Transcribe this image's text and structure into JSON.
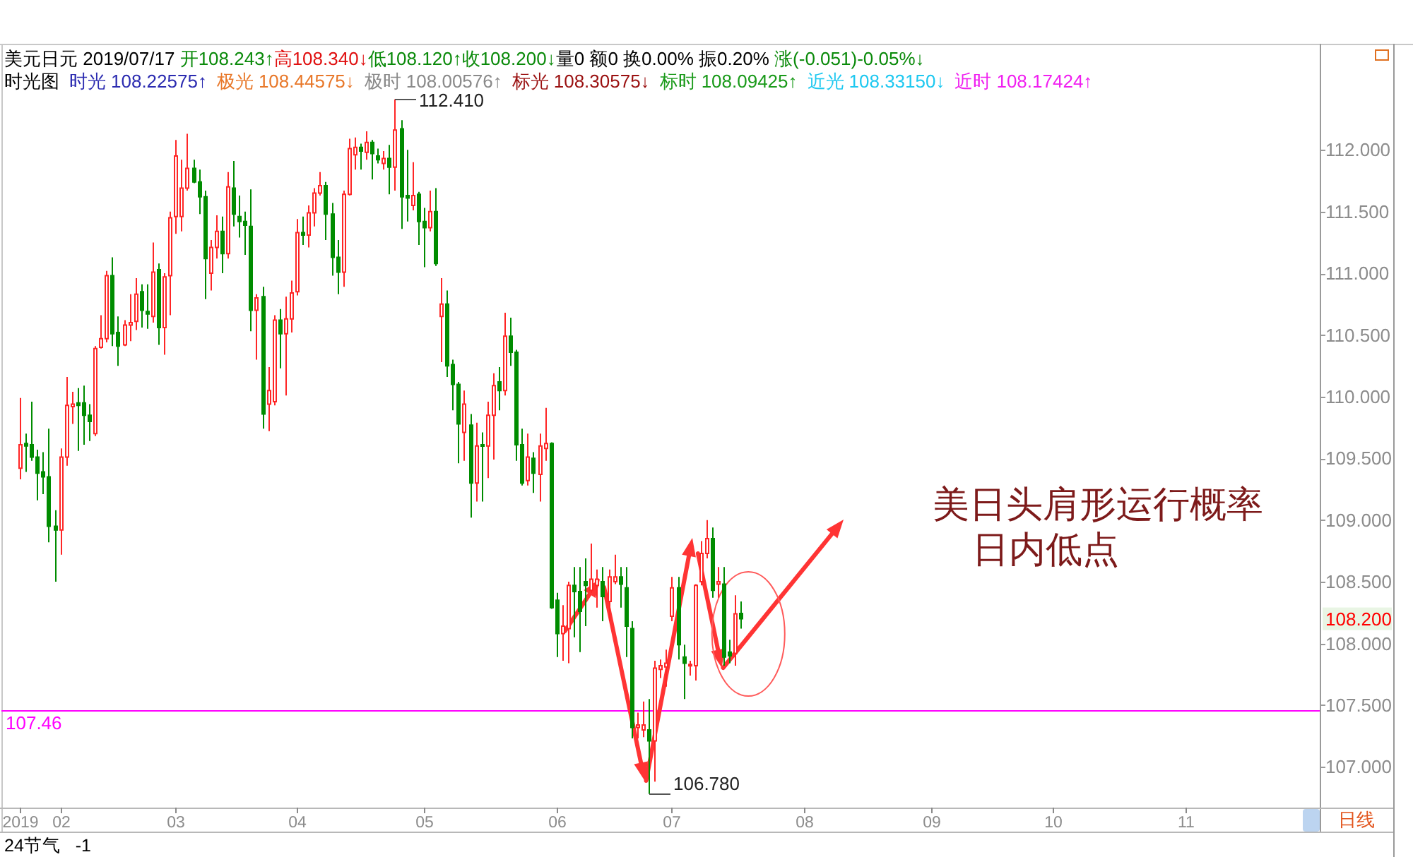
{
  "chart_data": {
    "type": "candlestick",
    "title": "美元日元 2019/07/17 开108.243↑高108.340↓低108.120↑收108.200↓量0 额0 换0.00% 振0.20% 涨(-0.051)-0.05%↓",
    "subtitle": "时光图 时光 108.22575↑ 极光 108.44575↓ 极时 108.00576↑ 标光 108.30575↓ 标时 108.09425↑ 近光 108.33150↓ 近时 108.17424↑",
    "categories": [
      "2019",
      null,
      null,
      null,
      null,
      null,
      null,
      "02",
      null,
      null,
      null,
      null,
      null,
      null,
      null,
      null,
      null,
      null,
      null,
      null,
      null,
      null,
      null,
      null,
      null,
      null,
      null,
      "03",
      null,
      null,
      null,
      null,
      null,
      null,
      null,
      null,
      null,
      null,
      null,
      null,
      null,
      null,
      null,
      null,
      null,
      null,
      null,
      null,
      "04",
      null,
      null,
      null,
      null,
      null,
      null,
      null,
      null,
      null,
      null,
      null,
      null,
      null,
      null,
      null,
      null,
      null,
      null,
      null,
      null,
      null,
      "05",
      null,
      null,
      null,
      null,
      null,
      null,
      null,
      null,
      null,
      null,
      null,
      null,
      null,
      null,
      null,
      null,
      null,
      null,
      null,
      null,
      null,
      null,
      "06",
      null,
      null,
      null,
      null,
      null,
      null,
      null,
      null,
      null,
      null,
      null,
      null,
      null,
      null,
      null,
      null,
      null,
      null,
      null,
      "07",
      null,
      null,
      null,
      null,
      null,
      null,
      null,
      null,
      null,
      null,
      null,
      null,
      null,
      null,
      null,
      null,
      null,
      null,
      null,
      null,
      null,
      null,
      "08",
      null,
      null,
      null,
      null,
      null,
      null,
      null,
      null,
      null,
      null,
      null,
      null,
      null,
      null,
      null,
      null,
      null,
      null,
      null,
      null,
      null,
      "09",
      null,
      null,
      null,
      null,
      null,
      null,
      null,
      null,
      null,
      null,
      null,
      null,
      null,
      null,
      null,
      null,
      null,
      null,
      null,
      null,
      "10",
      null,
      null,
      null,
      null,
      null,
      null,
      null,
      null,
      null,
      null,
      null,
      null,
      null,
      null,
      null,
      null,
      null,
      null,
      null,
      null,
      null,
      null,
      "11",
      null,
      null,
      null,
      null,
      null,
      null,
      null,
      null,
      null,
      null,
      null,
      null,
      null,
      null,
      null,
      null,
      null,
      null,
      null,
      null,
      null,
      null,
      null
    ],
    "ohlc": [
      [
        109.42,
        109.99,
        109.33,
        109.61
      ],
      [
        109.62,
        109.7,
        109.39,
        109.6
      ],
      [
        109.61,
        109.96,
        109.48,
        109.51
      ],
      [
        109.51,
        109.57,
        109.16,
        109.38
      ],
      [
        109.39,
        109.55,
        109.21,
        109.35
      ],
      [
        109.35,
        109.74,
        108.82,
        108.95
      ],
      [
        108.95,
        109.08,
        108.5,
        108.92
      ],
      [
        108.92,
        109.58,
        108.72,
        109.51
      ],
      [
        109.51,
        110.16,
        109.44,
        109.93
      ],
      [
        109.92,
        110.04,
        109.78,
        109.94
      ],
      [
        109.95,
        110.07,
        109.56,
        109.93
      ],
      [
        109.95,
        110.09,
        109.61,
        109.85
      ],
      [
        109.85,
        109.94,
        109.64,
        109.8
      ],
      [
        109.7,
        110.41,
        109.68,
        110.39
      ],
      [
        110.4,
        110.66,
        110.39,
        110.47
      ],
      [
        110.47,
        111.02,
        110.44,
        110.98
      ],
      [
        110.98,
        111.13,
        110.41,
        110.51
      ],
      [
        110.52,
        110.65,
        110.25,
        110.41
      ],
      [
        110.42,
        110.62,
        110.41,
        110.58
      ],
      [
        110.58,
        110.83,
        110.45,
        110.6
      ],
      [
        110.61,
        110.96,
        110.54,
        110.83
      ],
      [
        110.85,
        110.91,
        110.56,
        110.7
      ],
      [
        110.69,
        110.91,
        110.55,
        110.67
      ],
      [
        110.65,
        111.25,
        110.6,
        111.01
      ],
      [
        111.03,
        111.08,
        110.42,
        110.56
      ],
      [
        110.56,
        111.0,
        110.34,
        110.97
      ],
      [
        110.98,
        111.5,
        110.66,
        111.45
      ],
      [
        111.46,
        112.08,
        111.32,
        111.95
      ],
      [
        111.46,
        111.92,
        111.34,
        111.69
      ],
      [
        111.69,
        112.13,
        111.67,
        111.85
      ],
      [
        111.85,
        111.92,
        111.73,
        111.74
      ],
      [
        111.74,
        111.84,
        111.48,
        111.62
      ],
      [
        111.62,
        111.67,
        110.79,
        111.12
      ],
      [
        111.0,
        111.27,
        110.86,
        111.21
      ],
      [
        111.21,
        111.47,
        111.12,
        111.34
      ],
      [
        111.34,
        111.46,
        111.0,
        111.16
      ],
      [
        111.16,
        111.82,
        111.12,
        111.7
      ],
      [
        111.69,
        111.91,
        111.38,
        111.48
      ],
      [
        111.46,
        111.63,
        111.29,
        111.42
      ],
      [
        111.42,
        111.5,
        111.15,
        111.39
      ],
      [
        111.38,
        111.68,
        110.53,
        110.7
      ],
      [
        110.7,
        110.83,
        110.3,
        110.8
      ],
      [
        110.81,
        110.89,
        109.74,
        109.86
      ],
      [
        109.94,
        110.24,
        109.72,
        110.05
      ],
      [
        109.96,
        110.66,
        109.93,
        110.62
      ],
      [
        110.62,
        110.71,
        110.23,
        110.51
      ],
      [
        110.51,
        110.81,
        110.01,
        110.63
      ],
      [
        110.63,
        110.94,
        110.52,
        110.84
      ],
      [
        110.85,
        111.44,
        110.82,
        111.33
      ],
      [
        111.33,
        111.46,
        111.23,
        111.31
      ],
      [
        111.31,
        111.55,
        111.21,
        111.49
      ],
      [
        111.49,
        111.69,
        111.38,
        111.65
      ],
      [
        111.65,
        111.82,
        111.63,
        111.71
      ],
      [
        111.71,
        111.74,
        111.27,
        111.48
      ],
      [
        111.48,
        111.57,
        110.98,
        111.13
      ],
      [
        111.13,
        111.27,
        110.83,
        111.01
      ],
      [
        111.01,
        111.67,
        110.89,
        111.64
      ],
      [
        111.64,
        112.09,
        111.63,
        112.01
      ],
      [
        111.96,
        112.1,
        111.84,
        112.02
      ],
      [
        112.02,
        112.05,
        111.84,
        111.99
      ],
      [
        111.98,
        112.15,
        111.92,
        112.06
      ],
      [
        112.06,
        112.08,
        111.76,
        111.97
      ],
      [
        111.95,
        112.01,
        111.89,
        111.92
      ],
      [
        111.89,
        111.99,
        111.84,
        111.93
      ],
      [
        111.93,
        112.04,
        111.64,
        111.86
      ],
      [
        111.86,
        112.41,
        111.67,
        112.16
      ],
      [
        112.17,
        112.24,
        111.36,
        111.62
      ],
      [
        111.63,
        112.0,
        111.42,
        111.61
      ],
      [
        111.55,
        111.9,
        111.51,
        111.63
      ],
      [
        111.64,
        111.66,
        111.23,
        111.42
      ],
      [
        111.42,
        111.53,
        111.05,
        111.37
      ],
      [
        111.37,
        111.67,
        111.34,
        111.5
      ],
      [
        111.5,
        111.69,
        111.06,
        111.08
      ],
      [
        110.65,
        110.96,
        110.28,
        110.75
      ],
      [
        110.75,
        110.86,
        110.16,
        110.25
      ],
      [
        110.26,
        110.3,
        109.89,
        110.1
      ],
      [
        110.1,
        110.12,
        109.46,
        109.78
      ],
      [
        109.71,
        110.05,
        109.48,
        109.94
      ],
      [
        109.77,
        109.86,
        109.02,
        109.3
      ],
      [
        109.3,
        109.79,
        109.15,
        109.6
      ],
      [
        109.61,
        109.71,
        109.15,
        109.6
      ],
      [
        109.6,
        109.96,
        109.34,
        109.85
      ],
      [
        109.85,
        110.19,
        109.49,
        110.09
      ],
      [
        110.12,
        110.24,
        109.89,
        110.05
      ],
      [
        110.05,
        110.68,
        110.01,
        110.49
      ],
      [
        110.49,
        110.64,
        110.25,
        110.36
      ],
      [
        110.36,
        110.38,
        109.48,
        109.61
      ],
      [
        109.61,
        109.74,
        109.28,
        109.3
      ],
      [
        109.32,
        109.7,
        109.28,
        109.51
      ],
      [
        109.5,
        109.55,
        109.22,
        109.38
      ],
      [
        109.37,
        109.7,
        109.15,
        109.6
      ],
      [
        109.58,
        109.91,
        109.48,
        109.62
      ],
      [
        109.62,
        109.63,
        108.28,
        108.29
      ],
      [
        108.35,
        108.41,
        107.89,
        108.08
      ],
      [
        108.08,
        108.31,
        107.86,
        108.14
      ],
      [
        108.12,
        108.5,
        107.84,
        108.47
      ],
      [
        108.47,
        108.62,
        108.05,
        108.42
      ],
      [
        108.42,
        108.62,
        107.93,
        108.26
      ],
      [
        108.5,
        108.69,
        108.14,
        108.47
      ],
      [
        108.43,
        108.81,
        108.41,
        108.52
      ],
      [
        108.47,
        108.6,
        108.29,
        108.52
      ],
      [
        108.5,
        108.62,
        108.18,
        108.38
      ],
      [
        108.34,
        108.6,
        108.18,
        108.54
      ],
      [
        108.5,
        108.72,
        108.48,
        108.54
      ],
      [
        108.54,
        108.62,
        108.29,
        108.48
      ],
      [
        108.45,
        108.62,
        107.89,
        108.14
      ],
      [
        108.12,
        108.18,
        107.23,
        107.32
      ],
      [
        107.32,
        107.44,
        107.23,
        107.34
      ],
      [
        107.3,
        107.53,
        107.24,
        107.34
      ],
      [
        107.3,
        107.55,
        106.78,
        107.21
      ],
      [
        107.21,
        107.86,
        106.88,
        107.8
      ],
      [
        107.79,
        107.87,
        107.72,
        107.82
      ],
      [
        107.81,
        107.95,
        107.65,
        107.84
      ],
      [
        108.22,
        108.54,
        108.18,
        108.45
      ],
      [
        108.45,
        108.54,
        107.87,
        107.99
      ],
      [
        107.89,
        107.99,
        107.55,
        107.84
      ],
      [
        107.82,
        107.86,
        107.74,
        107.83
      ],
      [
        107.82,
        108.48,
        107.7,
        108.47
      ],
      [
        108.5,
        108.83,
        108.47,
        108.73
      ],
      [
        108.73,
        109.0,
        108.69,
        108.85
      ],
      [
        108.85,
        108.94,
        108.37,
        108.43
      ],
      [
        108.48,
        108.62,
        108.37,
        108.5
      ],
      [
        108.48,
        108.62,
        107.82,
        107.89
      ],
      [
        107.93,
        108.03,
        107.84,
        107.9
      ],
      [
        107.92,
        108.39,
        107.82,
        108.24
      ],
      [
        108.243,
        108.34,
        108.12,
        108.2
      ],
      null,
      null,
      null,
      null,
      null,
      null,
      null,
      null,
      null,
      null,
      null,
      null,
      null,
      null,
      null,
      null,
      null,
      null,
      null,
      null,
      null,
      null,
      null,
      null,
      null,
      null,
      null,
      null,
      null,
      null,
      null,
      null,
      null,
      null,
      null,
      null,
      null,
      null,
      null,
      null,
      null,
      null,
      null,
      null,
      null,
      null,
      null,
      null,
      null,
      null,
      null,
      null,
      null,
      null,
      null,
      null,
      null,
      null,
      null,
      null,
      null,
      null,
      null,
      null,
      null,
      null,
      null,
      null,
      null,
      null,
      null,
      null,
      null,
      null,
      null,
      null,
      null,
      null,
      null,
      null,
      null,
      null,
      null,
      null,
      null,
      null,
      null,
      null,
      null,
      null,
      null,
      null,
      null,
      null,
      null,
      null,
      null,
      null,
      null,
      null
    ],
    "ylim": [
      106.67,
      112.86
    ],
    "yticks": [
      {
        "value": 107,
        "label": "107.000"
      },
      {
        "value": 107.5,
        "label": "107.500"
      },
      {
        "value": 108,
        "label": "108.000"
      },
      {
        "value": 108.5,
        "label": "108.500"
      },
      {
        "value": 109,
        "label": "109.000"
      },
      {
        "value": 109.5,
        "label": "109.500"
      },
      {
        "value": 110,
        "label": "110.000"
      },
      {
        "value": 110.5,
        "label": "110.500"
      },
      {
        "value": 111,
        "label": "111.000"
      },
      {
        "value": 111.5,
        "label": "111.500"
      },
      {
        "value": 112,
        "label": "112.000"
      }
    ],
    "ref_lines": [
      {
        "axis": "y",
        "value": 107.46,
        "label": "107.46",
        "color": "#ff00ff"
      }
    ],
    "annotations": [
      "112.410",
      "106.780",
      "108.200",
      "美日头肩形运行概率",
      "日内低点",
      "日线",
      "24节气   -1"
    ]
  }
}
